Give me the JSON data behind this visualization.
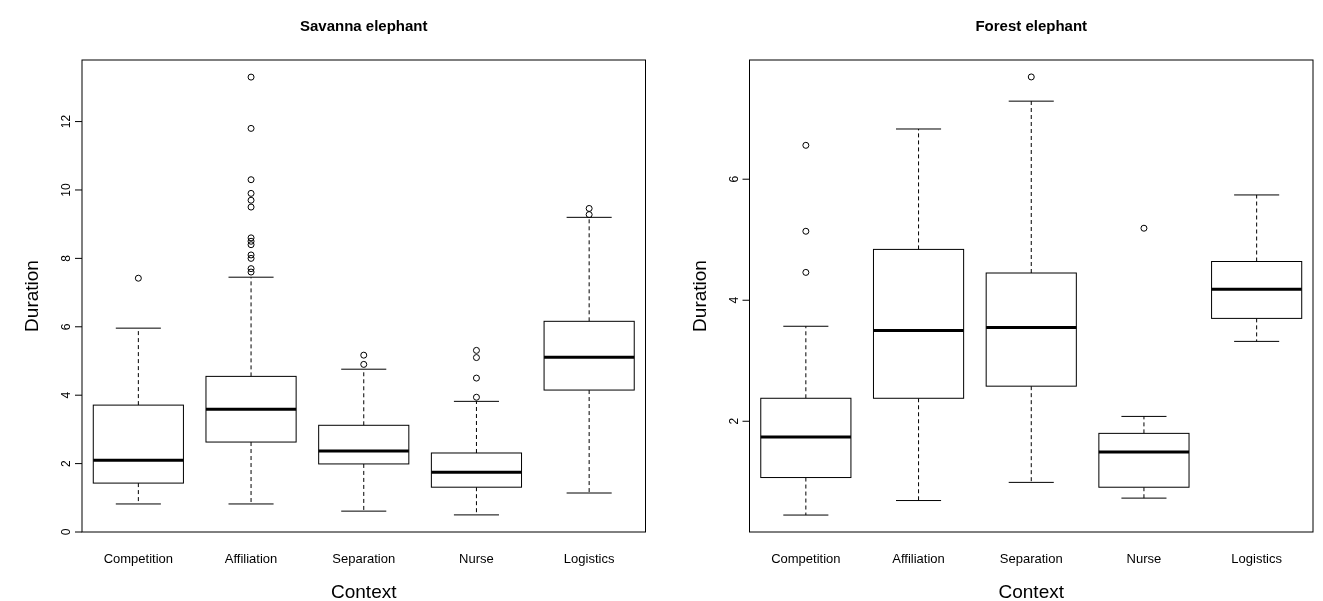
{
  "chart_data": [
    {
      "type": "box",
      "title": "Savanna elephant",
      "xlabel": "Context",
      "ylabel": "Duration",
      "categories": [
        "Competition",
        "Affiliation",
        "Separation",
        "Nurse",
        "Logistics"
      ],
      "ylim": [
        0,
        13.8
      ],
      "yticks": [
        0,
        2,
        4,
        6,
        8,
        10,
        12
      ],
      "grid": false,
      "boxes": [
        {
          "low": 0.82,
          "q1": 1.43,
          "median": 2.1,
          "q3": 3.71,
          "high": 5.96,
          "outliers": [
            7.42
          ]
        },
        {
          "low": 0.82,
          "q1": 2.63,
          "median": 3.59,
          "q3": 4.55,
          "high": 7.45,
          "outliers": [
            7.6,
            7.7,
            8.0,
            8.1,
            8.4,
            8.5,
            8.6,
            9.5,
            9.7,
            9.9,
            10.3,
            11.8,
            13.3
          ]
        },
        {
          "low": 0.61,
          "q1": 1.99,
          "median": 2.37,
          "q3": 3.12,
          "high": 4.76,
          "outliers": [
            4.9,
            5.17
          ]
        },
        {
          "low": 0.5,
          "q1": 1.31,
          "median": 1.75,
          "q3": 2.31,
          "high": 3.82,
          "outliers": [
            3.94,
            4.5,
            5.1,
            5.31
          ]
        },
        {
          "low": 1.14,
          "q1": 4.15,
          "median": 5.11,
          "q3": 6.16,
          "high": 9.2,
          "outliers": [
            9.28,
            9.46
          ]
        }
      ]
    },
    {
      "type": "box",
      "title": "Forest elephant",
      "xlabel": "Context",
      "ylabel": "Duration",
      "categories": [
        "Competition",
        "Affiliation",
        "Separation",
        "Nurse",
        "Logistics"
      ],
      "ylim": [
        0.17,
        7.97
      ],
      "yticks": [
        2,
        4,
        6
      ],
      "grid": false,
      "boxes": [
        {
          "low": 0.45,
          "q1": 1.07,
          "median": 1.74,
          "q3": 2.38,
          "high": 3.57,
          "outliers": [
            4.46,
            5.14,
            6.56
          ]
        },
        {
          "low": 0.69,
          "q1": 2.38,
          "median": 3.5,
          "q3": 4.84,
          "high": 6.83
        },
        {
          "low": 0.99,
          "q1": 2.58,
          "median": 3.55,
          "q3": 4.45,
          "high": 7.29,
          "outliers": [
            7.69
          ]
        },
        {
          "low": 0.73,
          "q1": 0.91,
          "median": 1.49,
          "q3": 1.8,
          "high": 2.08,
          "outliers": [
            5.19
          ]
        },
        {
          "low": 3.32,
          "q1": 3.7,
          "median": 4.18,
          "q3": 4.64,
          "high": 5.74
        }
      ]
    }
  ]
}
